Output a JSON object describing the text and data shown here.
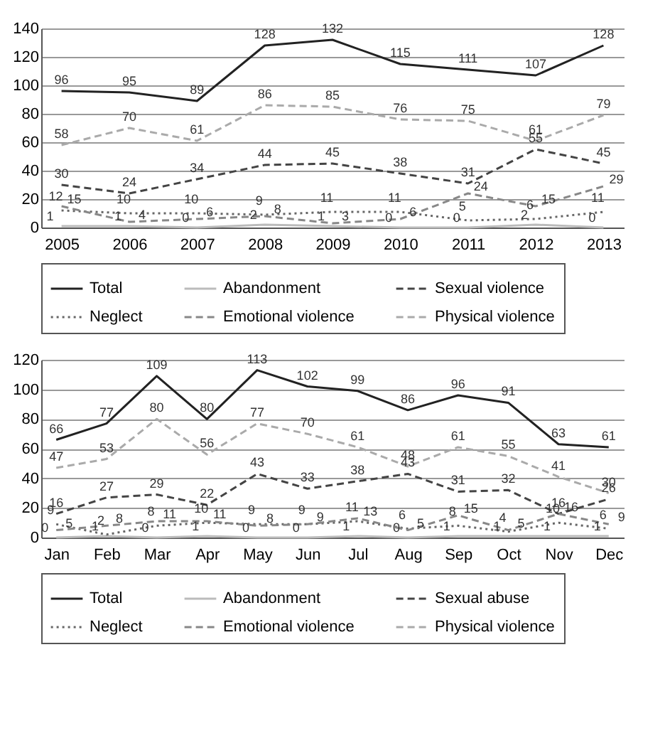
{
  "chart_data": [
    {
      "type": "line",
      "categories": [
        "2005",
        "2006",
        "2007",
        "2008",
        "2009",
        "2010",
        "2011",
        "2012",
        "2013"
      ],
      "ylim": [
        0,
        140
      ],
      "yticks": [
        0,
        20,
        40,
        60,
        80,
        100,
        120,
        140
      ],
      "grid": "y",
      "legend": "bottom",
      "data_labels": true,
      "series": [
        {
          "name": "Total",
          "color": "#222222",
          "line_style": "solid",
          "values": [
            96,
            95,
            89,
            128,
            132,
            115,
            111,
            107,
            128
          ]
        },
        {
          "name": "Abandonment",
          "color": "#bbbbbb",
          "line_style": "solid",
          "values": [
            1,
            1,
            0,
            2,
            1,
            0,
            0,
            2,
            0
          ]
        },
        {
          "name": "Sexual violence",
          "color": "#444444",
          "line_style": "dashed",
          "values": [
            30,
            24,
            34,
            44,
            45,
            38,
            31,
            55,
            45
          ]
        },
        {
          "name": "Neglect",
          "color": "#666666",
          "line_style": "dotted",
          "values": [
            12,
            10,
            10,
            9,
            11,
            11,
            5,
            6,
            11
          ]
        },
        {
          "name": "Emotional violence",
          "color": "#888888",
          "line_style": "dashed",
          "values": [
            15,
            4,
            6,
            8,
            3,
            6,
            24,
            15,
            29
          ]
        },
        {
          "name": "Physical violence",
          "color": "#aaaaaa",
          "line_style": "dashed",
          "values": [
            58,
            70,
            61,
            86,
            85,
            76,
            75,
            61,
            79
          ]
        }
      ]
    },
    {
      "type": "line",
      "categories": [
        "Jan",
        "Feb",
        "Mar",
        "Apr",
        "May",
        "Jun",
        "Jul",
        "Aug",
        "Sep",
        "Oct",
        "Nov",
        "Dec"
      ],
      "ylim": [
        0,
        120
      ],
      "yticks": [
        0,
        20,
        40,
        60,
        80,
        100,
        120
      ],
      "grid": "y",
      "legend": "bottom",
      "data_labels": true,
      "series": [
        {
          "name": "Total",
          "color": "#222222",
          "line_style": "solid",
          "values": [
            66,
            77,
            109,
            80,
            113,
            102,
            99,
            86,
            96,
            91,
            63,
            61
          ]
        },
        {
          "name": "Abandonment",
          "color": "#bbbbbb",
          "line_style": "solid",
          "values": [
            0,
            1,
            0,
            1,
            0,
            0,
            1,
            0,
            1,
            1,
            1,
            1
          ]
        },
        {
          "name": "Sexual abuse",
          "color": "#444444",
          "line_style": "dashed",
          "values": [
            16,
            27,
            29,
            22,
            43,
            33,
            38,
            43,
            31,
            32,
            16,
            26
          ]
        },
        {
          "name": "Neglect",
          "color": "#666666",
          "line_style": "dotted",
          "values": [
            9,
            2,
            8,
            10,
            9,
            9,
            11,
            6,
            8,
            4,
            10,
            6
          ]
        },
        {
          "name": "Emotional violence",
          "color": "#888888",
          "line_style": "dashed",
          "values": [
            5,
            8,
            11,
            11,
            8,
            9,
            13,
            5,
            15,
            5,
            16,
            9
          ]
        },
        {
          "name": "Physical violence",
          "color": "#aaaaaa",
          "line_style": "dashed",
          "values": [
            47,
            53,
            80,
            56,
            77,
            70,
            61,
            48,
            61,
            55,
            41,
            30
          ]
        }
      ]
    }
  ]
}
